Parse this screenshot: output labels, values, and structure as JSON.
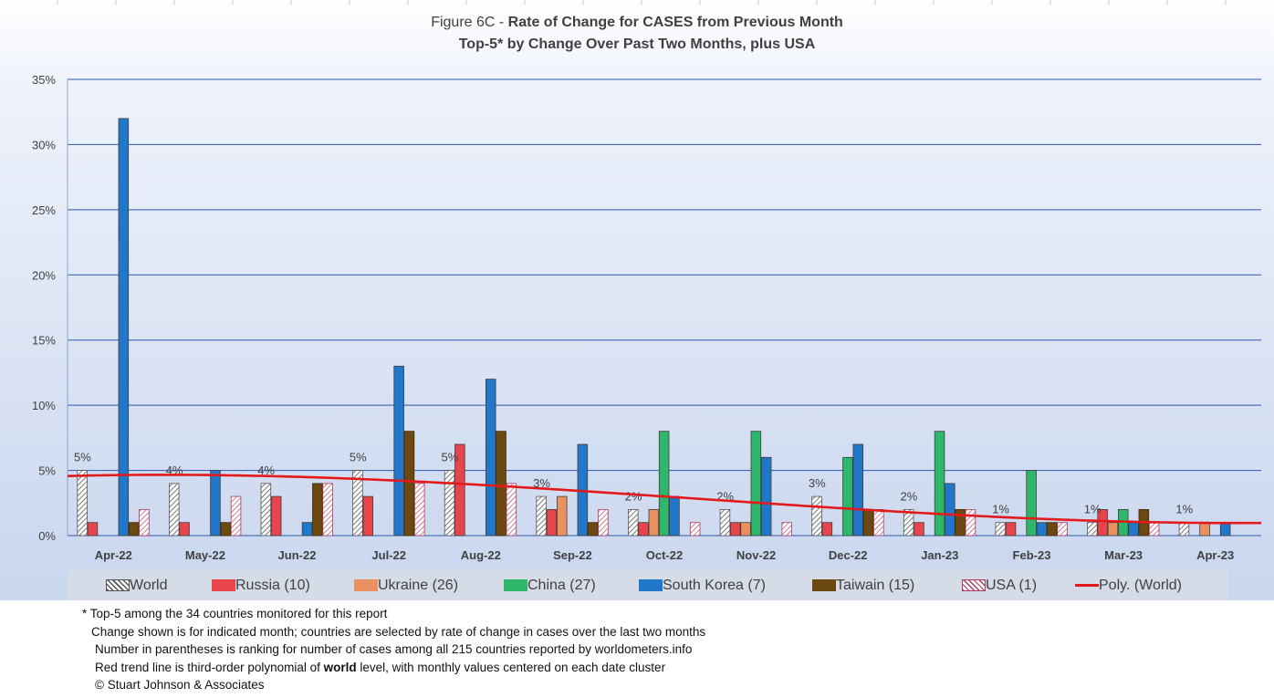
{
  "title": {
    "prefix": "Figure 6C -",
    "main": "Rate of Change for CASES from Previous Month",
    "subtitle": "Top-5* by Change Over Past Two Months, plus USA"
  },
  "chart_data": {
    "type": "bar",
    "title": "Figure 6C - Rate of Change for CASES from Previous Month",
    "subtitle": "Top-5* by Change Over Past Two Months, plus USA",
    "categories": [
      "Apr-22",
      "May-22",
      "Jun-22",
      "Jul-22",
      "Aug-22",
      "Sep-22",
      "Oct-22",
      "Nov-22",
      "Dec-22",
      "Jan-23",
      "Feb-23",
      "Mar-23",
      "Apr-23"
    ],
    "ylim": [
      0,
      35
    ],
    "yticks": [
      "0%",
      "5%",
      "10%",
      "15%",
      "20%",
      "25%",
      "30%",
      "35%"
    ],
    "ytick_values": [
      0,
      5,
      10,
      15,
      20,
      25,
      30,
      35
    ],
    "grid": true,
    "legend_position": "bottom",
    "series": [
      {
        "name": "World",
        "color": "#ffffff",
        "pattern": "hatch-dark",
        "values": [
          5,
          4,
          4,
          5,
          5,
          3,
          2,
          2,
          3,
          2,
          1,
          1,
          1
        ]
      },
      {
        "name": "Russia (10)",
        "color": "#e8444b",
        "values": [
          1,
          1,
          3,
          3,
          7,
          2,
          1,
          1,
          1,
          1,
          1,
          2,
          null
        ]
      },
      {
        "name": "Ukraine (26)",
        "color": "#ea9160",
        "values": [
          null,
          null,
          null,
          null,
          null,
          3,
          2,
          1,
          null,
          null,
          null,
          1,
          1
        ]
      },
      {
        "name": "China (27)",
        "color": "#2eb66b",
        "values": [
          null,
          null,
          null,
          null,
          null,
          null,
          8,
          8,
          6,
          8,
          5,
          2,
          null
        ]
      },
      {
        "name": "South Korea (7)",
        "color": "#2177c9",
        "values": [
          32,
          5,
          1,
          13,
          12,
          7,
          3,
          6,
          7,
          4,
          1,
          1,
          1
        ]
      },
      {
        "name": "Taiwain (15)",
        "color": "#6b4a12",
        "values": [
          1,
          1,
          4,
          8,
          8,
          1,
          null,
          null,
          2,
          2,
          1,
          2,
          null
        ]
      },
      {
        "name": "USA (1)",
        "color": "#ffffff",
        "pattern": "hatch-red",
        "values": [
          2,
          3,
          4,
          4,
          4,
          2,
          1,
          1,
          2,
          2,
          1,
          1,
          null
        ]
      }
    ],
    "data_labels": [
      "5%",
      "4%",
      "4%",
      "5%",
      "5%",
      "3%",
      "2%",
      "2%",
      "3%",
      "2%",
      "1%",
      "1%",
      "1%"
    ],
    "trendline": {
      "name": "Poly. (World)",
      "type": "polynomial",
      "order": 3,
      "color": "#e31a1c"
    }
  },
  "legend": {
    "items": [
      "World",
      "Russia (10)",
      "Ukraine (26)",
      "China (27)",
      "South Korea (7)",
      "Taiwain (15)",
      "USA (1)",
      "Poly. (World)"
    ]
  },
  "notes": {
    "line1": "* Top-5 among the 34 countries monitored for this report",
    "line2": "Change shown is for indicated month; countries are selected by rate of change in cases over the last two months",
    "line3": "Number in parentheses is ranking for number of cases among all 215 countries reported by worldometers.info",
    "line4_pre": "Red trend line is third-order polynomial of ",
    "line4_bold": "world",
    "line4_post": " level, with monthly values centered on each date cluster",
    "line5": "© Stuart Johnson & Associates"
  }
}
